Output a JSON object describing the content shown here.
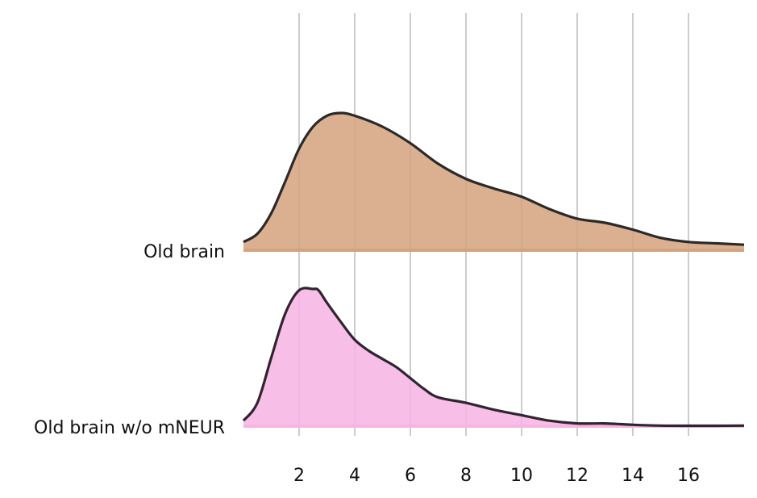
{
  "chart_data": {
    "type": "area",
    "subtype": "ridgeline",
    "title": "",
    "xlabel": "",
    "ylabel": "",
    "xlim": [
      0,
      18
    ],
    "x_ticks": [
      2,
      4,
      6,
      8,
      10,
      12,
      14,
      16
    ],
    "grid": "vertical",
    "legend": "none",
    "overlap": true,
    "series": [
      {
        "name": "Old brain",
        "color": "#d4a27e",
        "line_color": "#2a2a2a",
        "x": [
          0,
          0.5,
          1,
          1.5,
          2,
          2.5,
          3,
          3.5,
          4,
          5,
          6,
          7,
          8,
          9,
          10,
          11,
          12,
          13,
          14,
          15,
          16,
          17,
          18
        ],
        "density": [
          0.06,
          0.12,
          0.27,
          0.5,
          0.74,
          0.9,
          0.98,
          1.0,
          0.98,
          0.9,
          0.78,
          0.63,
          0.52,
          0.45,
          0.39,
          0.3,
          0.23,
          0.2,
          0.15,
          0.09,
          0.06,
          0.05,
          0.04
        ]
      },
      {
        "name": "Old brain w/o mNEUR",
        "color": "#f6b3e3",
        "line_color": "#2f252f",
        "x": [
          0,
          0.5,
          1,
          1.5,
          2,
          2.5,
          2.7,
          3,
          3.5,
          4,
          4.5,
          5,
          5.5,
          6,
          6.5,
          7,
          8,
          9,
          10,
          11,
          12,
          13,
          14,
          15,
          16,
          17,
          18
        ],
        "density": [
          0.04,
          0.17,
          0.5,
          0.82,
          0.99,
          1.0,
          0.99,
          0.9,
          0.76,
          0.63,
          0.55,
          0.49,
          0.43,
          0.35,
          0.27,
          0.21,
          0.17,
          0.12,
          0.08,
          0.04,
          0.02,
          0.02,
          0.01,
          0.004,
          0.003,
          0.003,
          0.004
        ]
      }
    ]
  },
  "row_labels": [
    "Old brain",
    "Old brain w/o mNEUR"
  ],
  "tick_labels": [
    "2",
    "4",
    "6",
    "8",
    "10",
    "12",
    "14",
    "16"
  ]
}
